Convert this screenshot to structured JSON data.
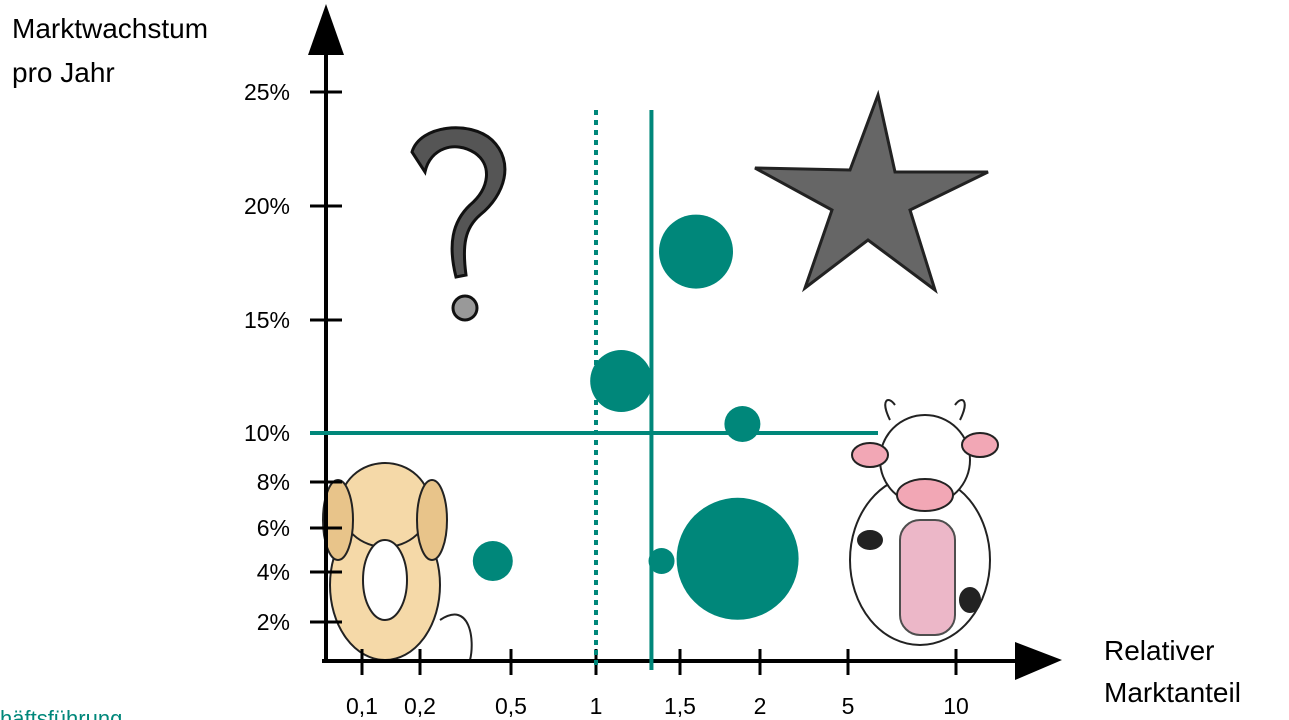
{
  "chart_data": {
    "type": "bubble",
    "ylabel": [
      "Marktwachstum",
      "pro Jahr"
    ],
    "xlabel": [
      "Relativer",
      "Marktanteil"
    ],
    "x": [
      1.6,
      1.15,
      1.89,
      0.44,
      1.39,
      1.86
    ],
    "series": [
      {
        "color": "#00877a",
        "values": [
          18,
          12.3,
          10.4,
          4.5,
          4.5,
          4.6
        ],
        "sizes": [
          37,
          31,
          18,
          20,
          13,
          61
        ]
      }
    ],
    "xlim": [
      0.03,
      15
    ],
    "ylim": [
      0,
      28
    ],
    "xticks": [
      {
        "value": 0.1,
        "label": "0,1"
      },
      {
        "value": 0.2,
        "label": "0,2"
      },
      {
        "value": 0.5,
        "label": "0,5"
      },
      1,
      {
        "value": 1.5,
        "label": "1,5"
      },
      2,
      5,
      10
    ],
    "yticks": [
      {
        "value": 2,
        "label": "2%"
      },
      {
        "value": 4,
        "label": "4%"
      },
      {
        "value": 6,
        "label": "6%"
      },
      {
        "value": 8,
        "label": "8%"
      },
      {
        "value": 10,
        "label": "10%"
      },
      {
        "value": 15,
        "label": "15%"
      },
      {
        "value": 20,
        "label": "20%"
      },
      {
        "value": 25,
        "label": "25%"
      }
    ],
    "hlines": [
      {
        "value": 10,
        "style": "solid"
      }
    ],
    "vlines": [
      {
        "value": 1,
        "style": "dotted"
      },
      {
        "value": 1.33,
        "style": "solid"
      }
    ],
    "line_color": "#00877a"
  },
  "footer": "häftsführung"
}
